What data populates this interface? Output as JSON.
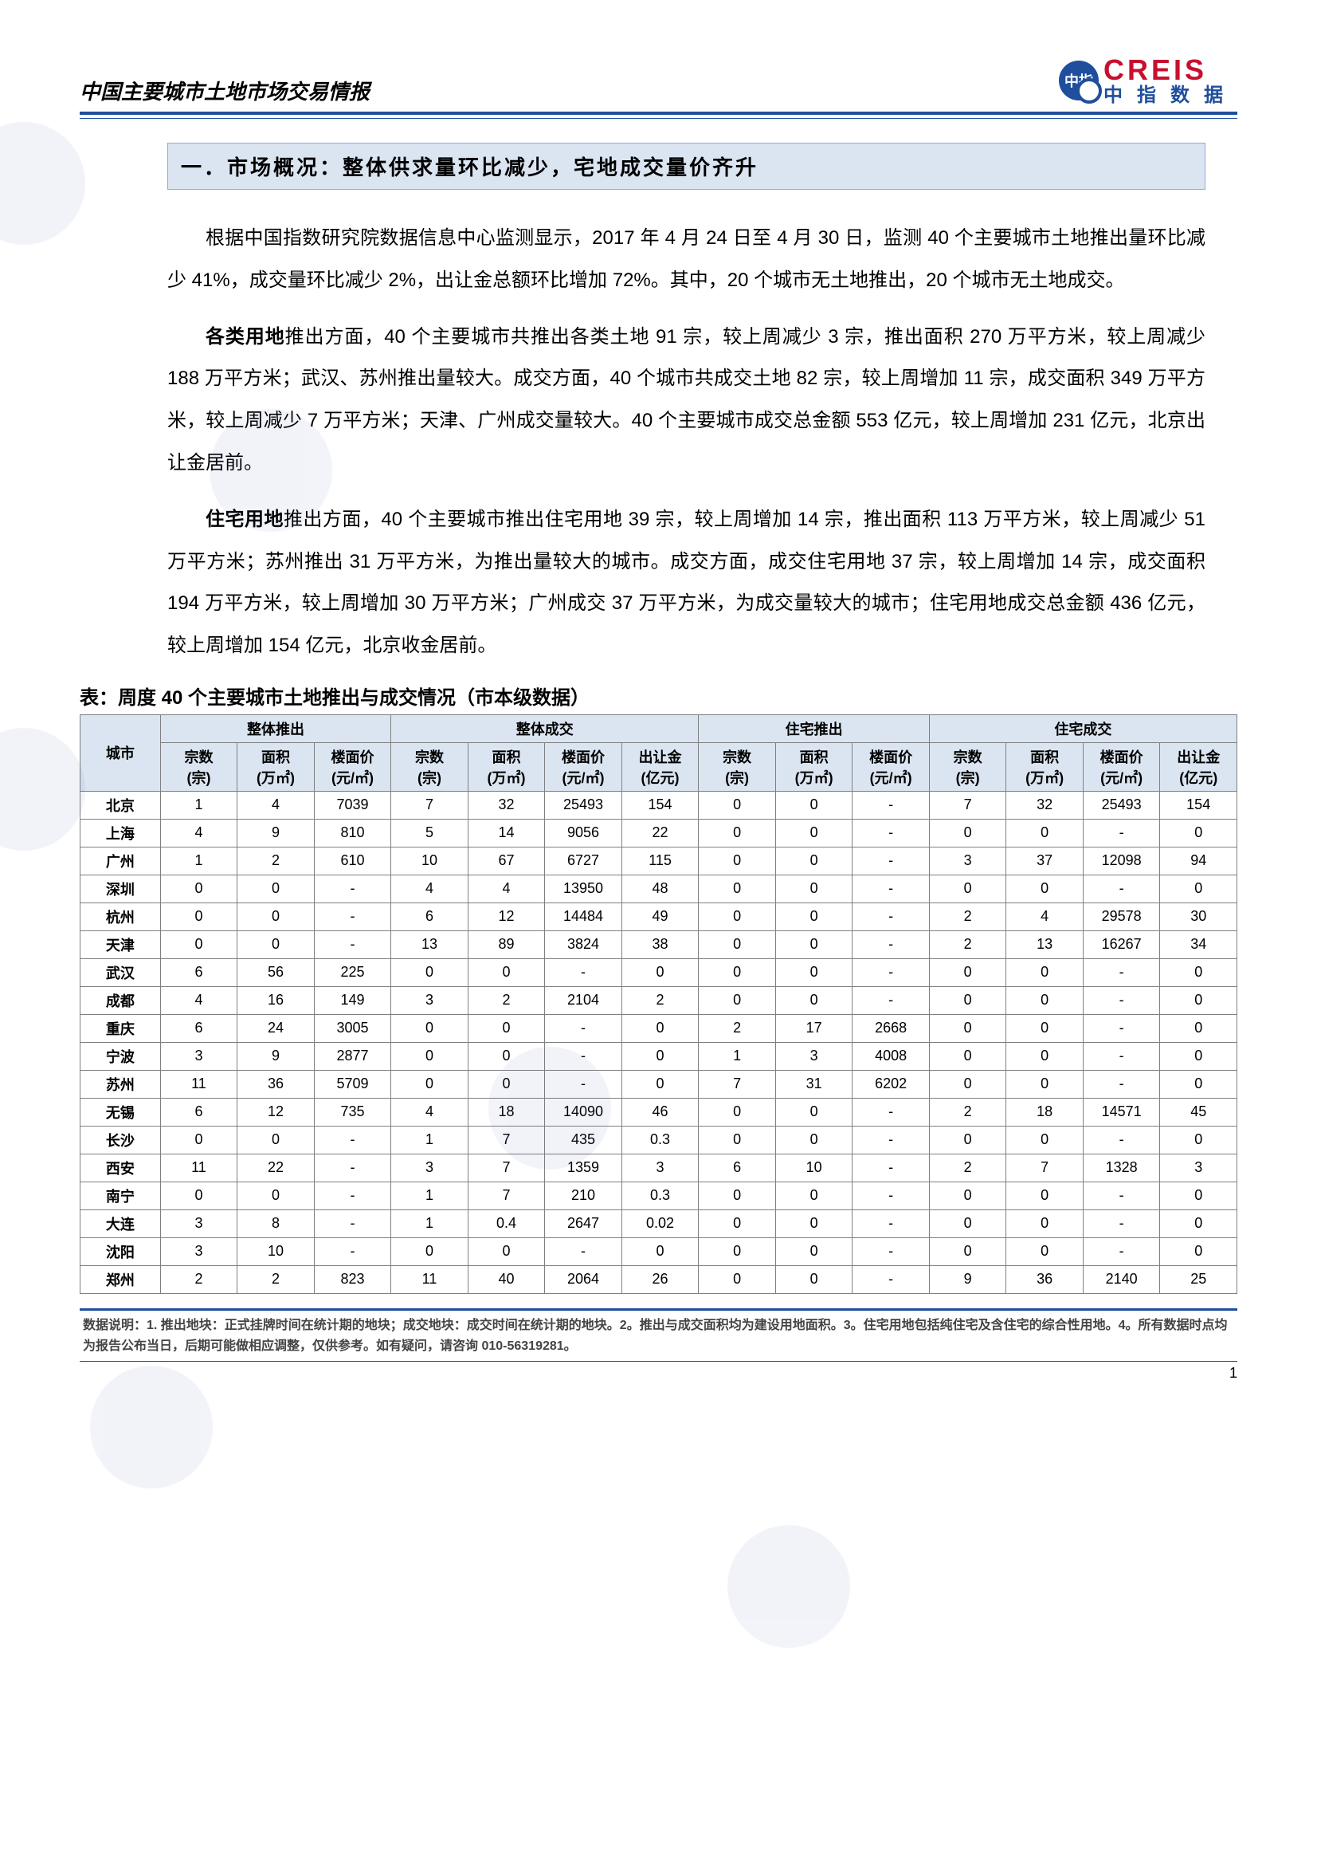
{
  "header": {
    "doc_title": "中国主要城市土地市场交易情报",
    "logo_badge": "中指",
    "logo_en": "CREIS",
    "logo_cn": "中指数据"
  },
  "section_banner": "一．市场概况：整体供求量环比减少，宅地成交量价齐升",
  "paragraphs": {
    "p1": "根据中国指数研究院数据信息中心监测显示，2017 年 4 月 24 日至 4 月 30 日，监测 40 个主要城市土地推出量环比减少 41%，成交量环比减少 2%，出让金总额环比增加 72%。其中，20 个城市无土地推出，20 个城市无土地成交。",
    "p2_lead": "各类用地",
    "p2": "推出方面，40 个主要城市共推出各类土地 91 宗，较上周减少 3 宗，推出面积 270 万平方米，较上周减少 188 万平方米；武汉、苏州推出量较大。成交方面，40 个城市共成交土地 82 宗，较上周增加 11 宗，成交面积 349 万平方米，较上周减少 7 万平方米；天津、广州成交量较大。40 个主要城市成交总金额 553 亿元，较上周增加 231 亿元，北京出让金居前。",
    "p3_lead": "住宅用地",
    "p3": "推出方面，40 个主要城市推出住宅用地 39 宗，较上周增加 14 宗，推出面积 113 万平方米，较上周减少 51 万平方米；苏州推出 31 万平方米，为推出量较大的城市。成交方面，成交住宅用地 37 宗，较上周增加 14 宗，成交面积 194 万平方米，较上周增加 30 万平方米；广州成交 37 万平方米，为成交量较大的城市；住宅用地成交总金额 436 亿元，较上周增加 154 亿元，北京收金居前。"
  },
  "table": {
    "caption": "表：周度 40 个主要城市土地推出与成交情况（市本级数据）",
    "group_headers": [
      "城市",
      "整体推出",
      "整体成交",
      "住宅推出",
      "住宅成交"
    ],
    "sub_headers": {
      "city": "城市",
      "zong": "宗数\n(宗)",
      "area": "面积\n(万㎡)",
      "price": "楼面价\n(元/㎡)",
      "money": "出让金\n(亿元)"
    },
    "rows": [
      {
        "city": "北京",
        "a": [
          "1",
          "4",
          "7039"
        ],
        "b": [
          "7",
          "32",
          "25493",
          "154"
        ],
        "c": [
          "0",
          "0",
          "-"
        ],
        "d": [
          "7",
          "32",
          "25493",
          "154"
        ]
      },
      {
        "city": "上海",
        "a": [
          "4",
          "9",
          "810"
        ],
        "b": [
          "5",
          "14",
          "9056",
          "22"
        ],
        "c": [
          "0",
          "0",
          "-"
        ],
        "d": [
          "0",
          "0",
          "-",
          "0"
        ]
      },
      {
        "city": "广州",
        "a": [
          "1",
          "2",
          "610"
        ],
        "b": [
          "10",
          "67",
          "6727",
          "115"
        ],
        "c": [
          "0",
          "0",
          "-"
        ],
        "d": [
          "3",
          "37",
          "12098",
          "94"
        ]
      },
      {
        "city": "深圳",
        "a": [
          "0",
          "0",
          "-"
        ],
        "b": [
          "4",
          "4",
          "13950",
          "48"
        ],
        "c": [
          "0",
          "0",
          "-"
        ],
        "d": [
          "0",
          "0",
          "-",
          "0"
        ]
      },
      {
        "city": "杭州",
        "a": [
          "0",
          "0",
          "-"
        ],
        "b": [
          "6",
          "12",
          "14484",
          "49"
        ],
        "c": [
          "0",
          "0",
          "-"
        ],
        "d": [
          "2",
          "4",
          "29578",
          "30"
        ]
      },
      {
        "city": "天津",
        "a": [
          "0",
          "0",
          "-"
        ],
        "b": [
          "13",
          "89",
          "3824",
          "38"
        ],
        "c": [
          "0",
          "0",
          "-"
        ],
        "d": [
          "2",
          "13",
          "16267",
          "34"
        ]
      },
      {
        "city": "武汉",
        "a": [
          "6",
          "56",
          "225"
        ],
        "b": [
          "0",
          "0",
          "-",
          "0"
        ],
        "c": [
          "0",
          "0",
          "-"
        ],
        "d": [
          "0",
          "0",
          "-",
          "0"
        ]
      },
      {
        "city": "成都",
        "a": [
          "4",
          "16",
          "149"
        ],
        "b": [
          "3",
          "2",
          "2104",
          "2"
        ],
        "c": [
          "0",
          "0",
          "-"
        ],
        "d": [
          "0",
          "0",
          "-",
          "0"
        ]
      },
      {
        "city": "重庆",
        "a": [
          "6",
          "24",
          "3005"
        ],
        "b": [
          "0",
          "0",
          "-",
          "0"
        ],
        "c": [
          "2",
          "17",
          "2668"
        ],
        "d": [
          "0",
          "0",
          "-",
          "0"
        ]
      },
      {
        "city": "宁波",
        "a": [
          "3",
          "9",
          "2877"
        ],
        "b": [
          "0",
          "0",
          "-",
          "0"
        ],
        "c": [
          "1",
          "3",
          "4008"
        ],
        "d": [
          "0",
          "0",
          "-",
          "0"
        ]
      },
      {
        "city": "苏州",
        "a": [
          "11",
          "36",
          "5709"
        ],
        "b": [
          "0",
          "0",
          "-",
          "0"
        ],
        "c": [
          "7",
          "31",
          "6202"
        ],
        "d": [
          "0",
          "0",
          "-",
          "0"
        ]
      },
      {
        "city": "无锡",
        "a": [
          "6",
          "12",
          "735"
        ],
        "b": [
          "4",
          "18",
          "14090",
          "46"
        ],
        "c": [
          "0",
          "0",
          "-"
        ],
        "d": [
          "2",
          "18",
          "14571",
          "45"
        ]
      },
      {
        "city": "长沙",
        "a": [
          "0",
          "0",
          "-"
        ],
        "b": [
          "1",
          "7",
          "435",
          "0.3"
        ],
        "c": [
          "0",
          "0",
          "-"
        ],
        "d": [
          "0",
          "0",
          "-",
          "0"
        ]
      },
      {
        "city": "西安",
        "a": [
          "11",
          "22",
          "-"
        ],
        "b": [
          "3",
          "7",
          "1359",
          "3"
        ],
        "c": [
          "6",
          "10",
          "-"
        ],
        "d": [
          "2",
          "7",
          "1328",
          "3"
        ]
      },
      {
        "city": "南宁",
        "a": [
          "0",
          "0",
          "-"
        ],
        "b": [
          "1",
          "7",
          "210",
          "0.3"
        ],
        "c": [
          "0",
          "0",
          "-"
        ],
        "d": [
          "0",
          "0",
          "-",
          "0"
        ]
      },
      {
        "city": "大连",
        "a": [
          "3",
          "8",
          "-"
        ],
        "b": [
          "1",
          "0.4",
          "2647",
          "0.02"
        ],
        "c": [
          "0",
          "0",
          "-"
        ],
        "d": [
          "0",
          "0",
          "-",
          "0"
        ]
      },
      {
        "city": "沈阳",
        "a": [
          "3",
          "10",
          "-"
        ],
        "b": [
          "0",
          "0",
          "-",
          "0"
        ],
        "c": [
          "0",
          "0",
          "-"
        ],
        "d": [
          "0",
          "0",
          "-",
          "0"
        ]
      },
      {
        "city": "郑州",
        "a": [
          "2",
          "2",
          "823"
        ],
        "b": [
          "11",
          "40",
          "2064",
          "26"
        ],
        "c": [
          "0",
          "0",
          "-"
        ],
        "d": [
          "9",
          "36",
          "2140",
          "25"
        ]
      }
    ]
  },
  "footer": {
    "note": "数据说明：1. 推出地块：正式挂牌时间在统计期的地块；成交地块：成交时间在统计期的地块。2。推出与成交面积均为建设用地面积。3。住宅用地包括纯住宅及含住宅的综合性用地。4。所有数据时点均为报告公布当日，后期可能做相应调整，仅供参考。如有疑问，请咨询 010-56319281。",
    "page": "1"
  },
  "styling": {
    "accent_blue": "#1f4e9c",
    "banner_fill": "#dbe5f1",
    "banner_border": "#8faadc",
    "brand_red": "#c8102e",
    "table_border": "#7f7f7f",
    "body_fontsize": 24,
    "table_fontsize": 18,
    "caption_fontsize": 24,
    "footer_fontsize": 16
  }
}
